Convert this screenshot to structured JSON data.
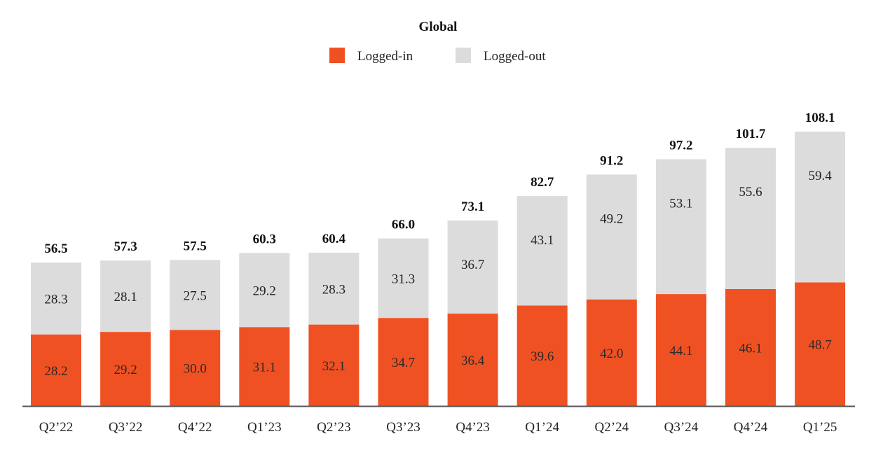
{
  "chart_data": {
    "type": "bar",
    "stacked": true,
    "title": "Global",
    "legend_placement": "top-center",
    "grid": false,
    "categories": [
      "Q2’22",
      "Q3’22",
      "Q4’22",
      "Q1’23",
      "Q2’23",
      "Q3’23",
      "Q4’23",
      "Q1’24",
      "Q2’24",
      "Q3’24",
      "Q4’24",
      "Q1’25"
    ],
    "series": [
      {
        "name": "Logged-in",
        "color": "#F05123",
        "values": [
          28.2,
          29.2,
          30.0,
          31.1,
          32.1,
          34.7,
          36.4,
          39.6,
          42.0,
          44.1,
          46.1,
          48.7
        ]
      },
      {
        "name": "Logged-out",
        "color": "#DCDCDD",
        "values": [
          28.3,
          28.1,
          27.5,
          29.2,
          28.3,
          31.3,
          36.7,
          43.1,
          49.2,
          53.1,
          55.6,
          59.4
        ]
      }
    ],
    "totals": [
      56.5,
      57.3,
      57.5,
      60.3,
      60.4,
      66.0,
      73.1,
      82.7,
      91.2,
      97.2,
      101.7,
      108.1
    ],
    "ylim": [
      0,
      108.1
    ]
  }
}
